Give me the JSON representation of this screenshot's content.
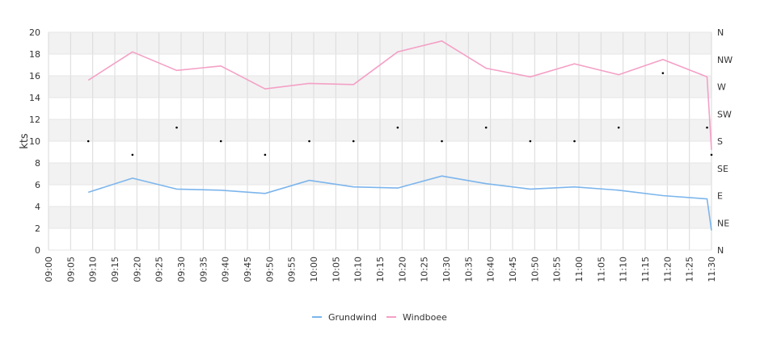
{
  "chart_data": {
    "type": "line",
    "title": "",
    "ylabel": "kts",
    "ylim": [
      0,
      20
    ],
    "yticks": [
      0,
      2,
      4,
      6,
      8,
      10,
      12,
      14,
      16,
      18,
      20
    ],
    "x_range": [
      "09:00",
      "11:30"
    ],
    "xticks": [
      "09:00",
      "09:05",
      "09:10",
      "09:15",
      "09:20",
      "09:25",
      "09:30",
      "09:35",
      "09:40",
      "09:45",
      "09:50",
      "09:55",
      "10:00",
      "10:05",
      "10:10",
      "10:15",
      "10:20",
      "10:25",
      "10:30",
      "10:35",
      "10:40",
      "10:45",
      "10:50",
      "10:55",
      "11:00",
      "11:05",
      "11:10",
      "11:15",
      "11:20",
      "11:25",
      "11:30"
    ],
    "y2_ticks": [
      "N",
      "NE",
      "E",
      "SE",
      "S",
      "SW",
      "W",
      "NW",
      "N"
    ],
    "grid": true,
    "banded_background": true,
    "legend_position": "bottom",
    "series": [
      {
        "name": "Grundwind",
        "color": "#7cb5ec",
        "x": [
          "09:09",
          "09:19",
          "09:29",
          "09:39",
          "09:49",
          "09:59",
          "10:09",
          "10:19",
          "10:29",
          "10:39",
          "10:49",
          "10:59",
          "11:09",
          "11:19",
          "11:29",
          "11:30"
        ],
        "values": [
          5.3,
          6.6,
          5.6,
          5.5,
          5.2,
          6.4,
          5.8,
          5.7,
          6.8,
          6.1,
          5.6,
          5.8,
          5.5,
          5.0,
          4.7,
          1.8
        ]
      },
      {
        "name": "Windboee",
        "color": "#f4a0c6",
        "x": [
          "09:09",
          "09:19",
          "09:29",
          "09:39",
          "09:49",
          "09:59",
          "10:09",
          "10:19",
          "10:29",
          "10:39",
          "10:49",
          "10:59",
          "11:09",
          "11:19",
          "11:29",
          "11:30"
        ],
        "values": [
          15.6,
          18.2,
          16.5,
          16.9,
          14.8,
          15.3,
          15.2,
          18.2,
          19.2,
          16.7,
          15.9,
          17.1,
          16.1,
          17.5,
          15.9,
          9.2
        ]
      }
    ],
    "direction_points": {
      "x": [
        "09:09",
        "09:19",
        "09:29",
        "09:39",
        "09:49",
        "09:59",
        "10:09",
        "10:19",
        "10:29",
        "10:39",
        "10:49",
        "10:59",
        "11:09",
        "11:19",
        "11:29",
        "11:30"
      ],
      "values": [
        4,
        3.5,
        4.5,
        4,
        3.5,
        4,
        4,
        4.5,
        4,
        4.5,
        4,
        4,
        4.5,
        6.5,
        4.5,
        3.5
      ]
    }
  }
}
